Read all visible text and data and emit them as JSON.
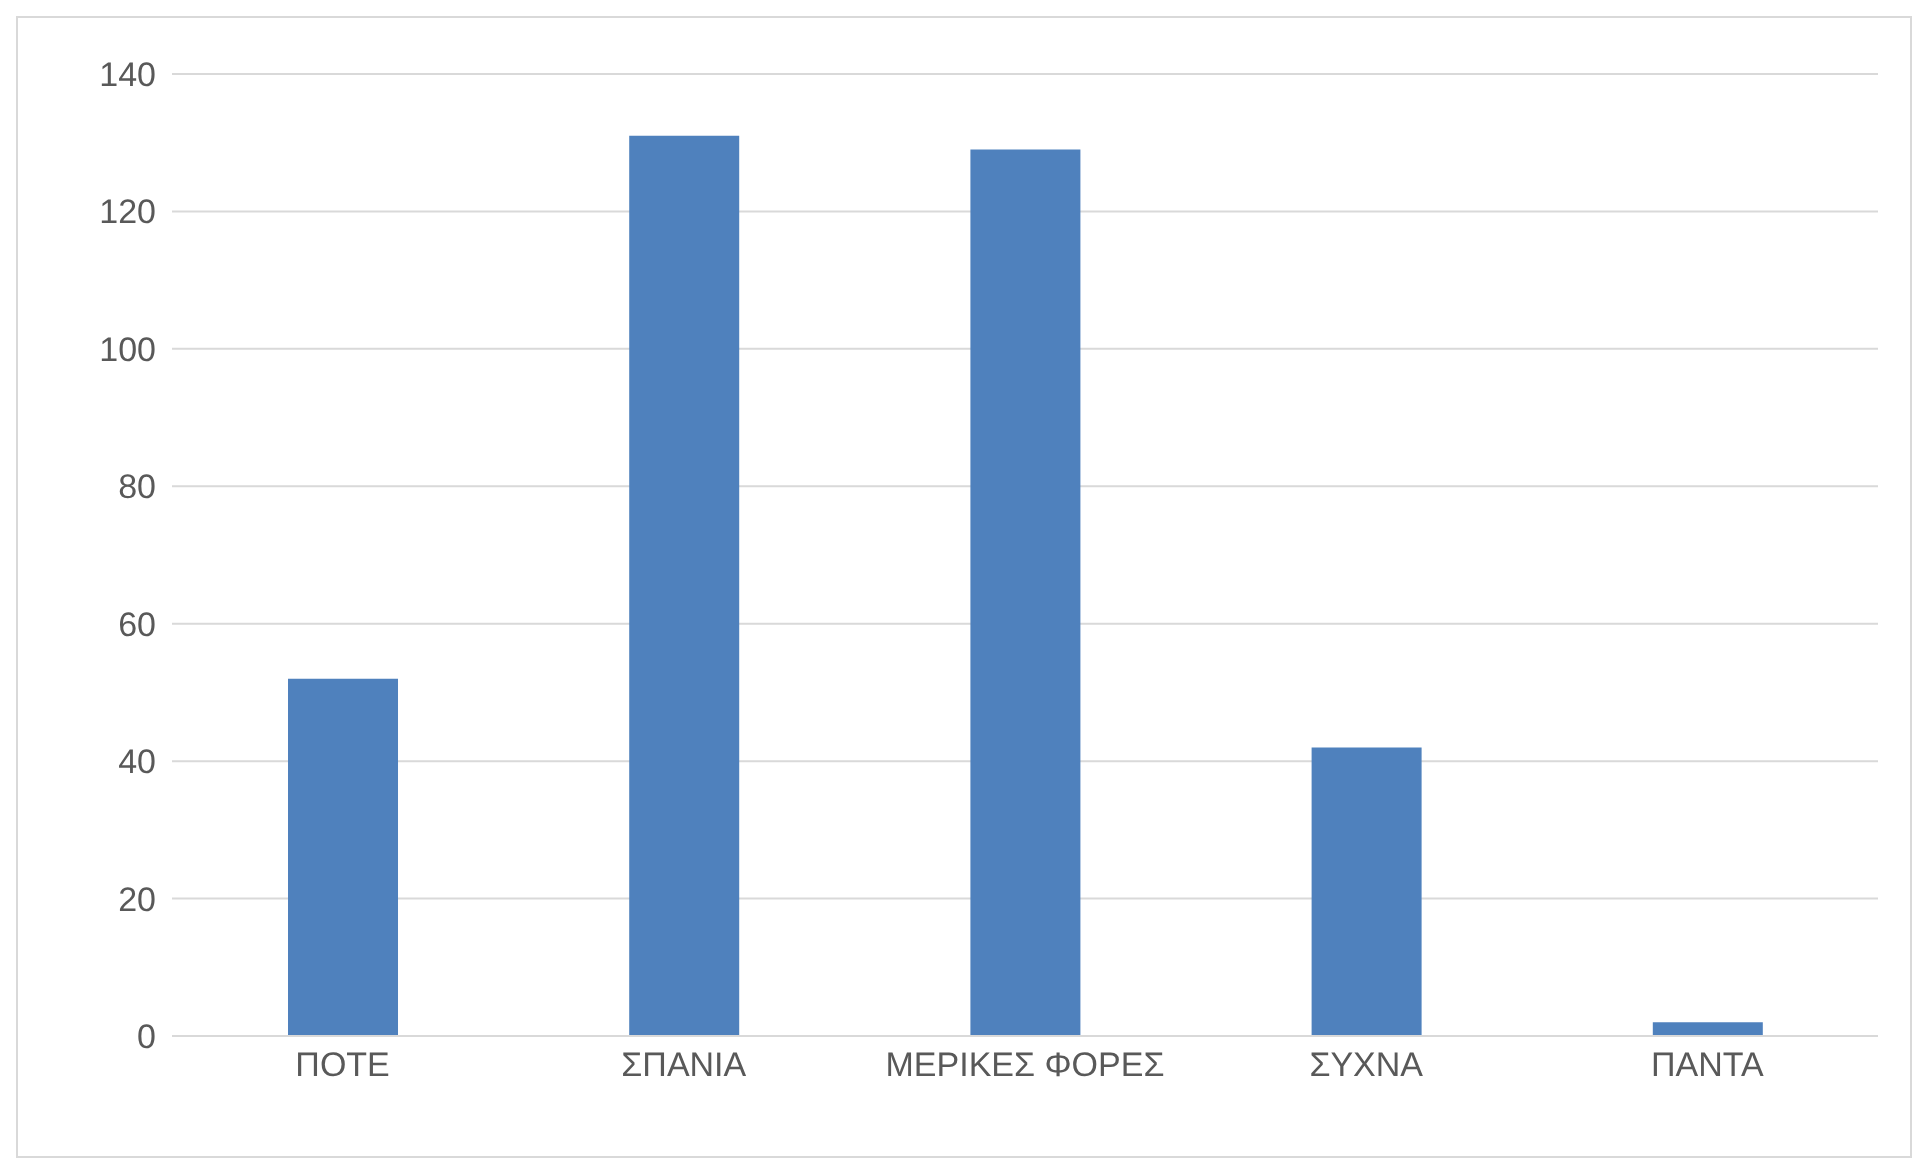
{
  "chart_data": {
    "type": "bar",
    "categories": [
      "ΠΟΤΕ",
      "ΣΠΑΝΙΑ",
      "ΜΕΡΙΚΕΣ ΦΟΡΕΣ",
      "ΣΥΧΝΑ",
      "ΠΑΝΤΑ"
    ],
    "values": [
      52,
      131,
      129,
      42,
      2
    ],
    "color": "#4f81bd",
    "ylim": [
      0,
      140
    ],
    "yticks": [
      0,
      20,
      40,
      60,
      80,
      100,
      120,
      140
    ],
    "grid": "y"
  }
}
